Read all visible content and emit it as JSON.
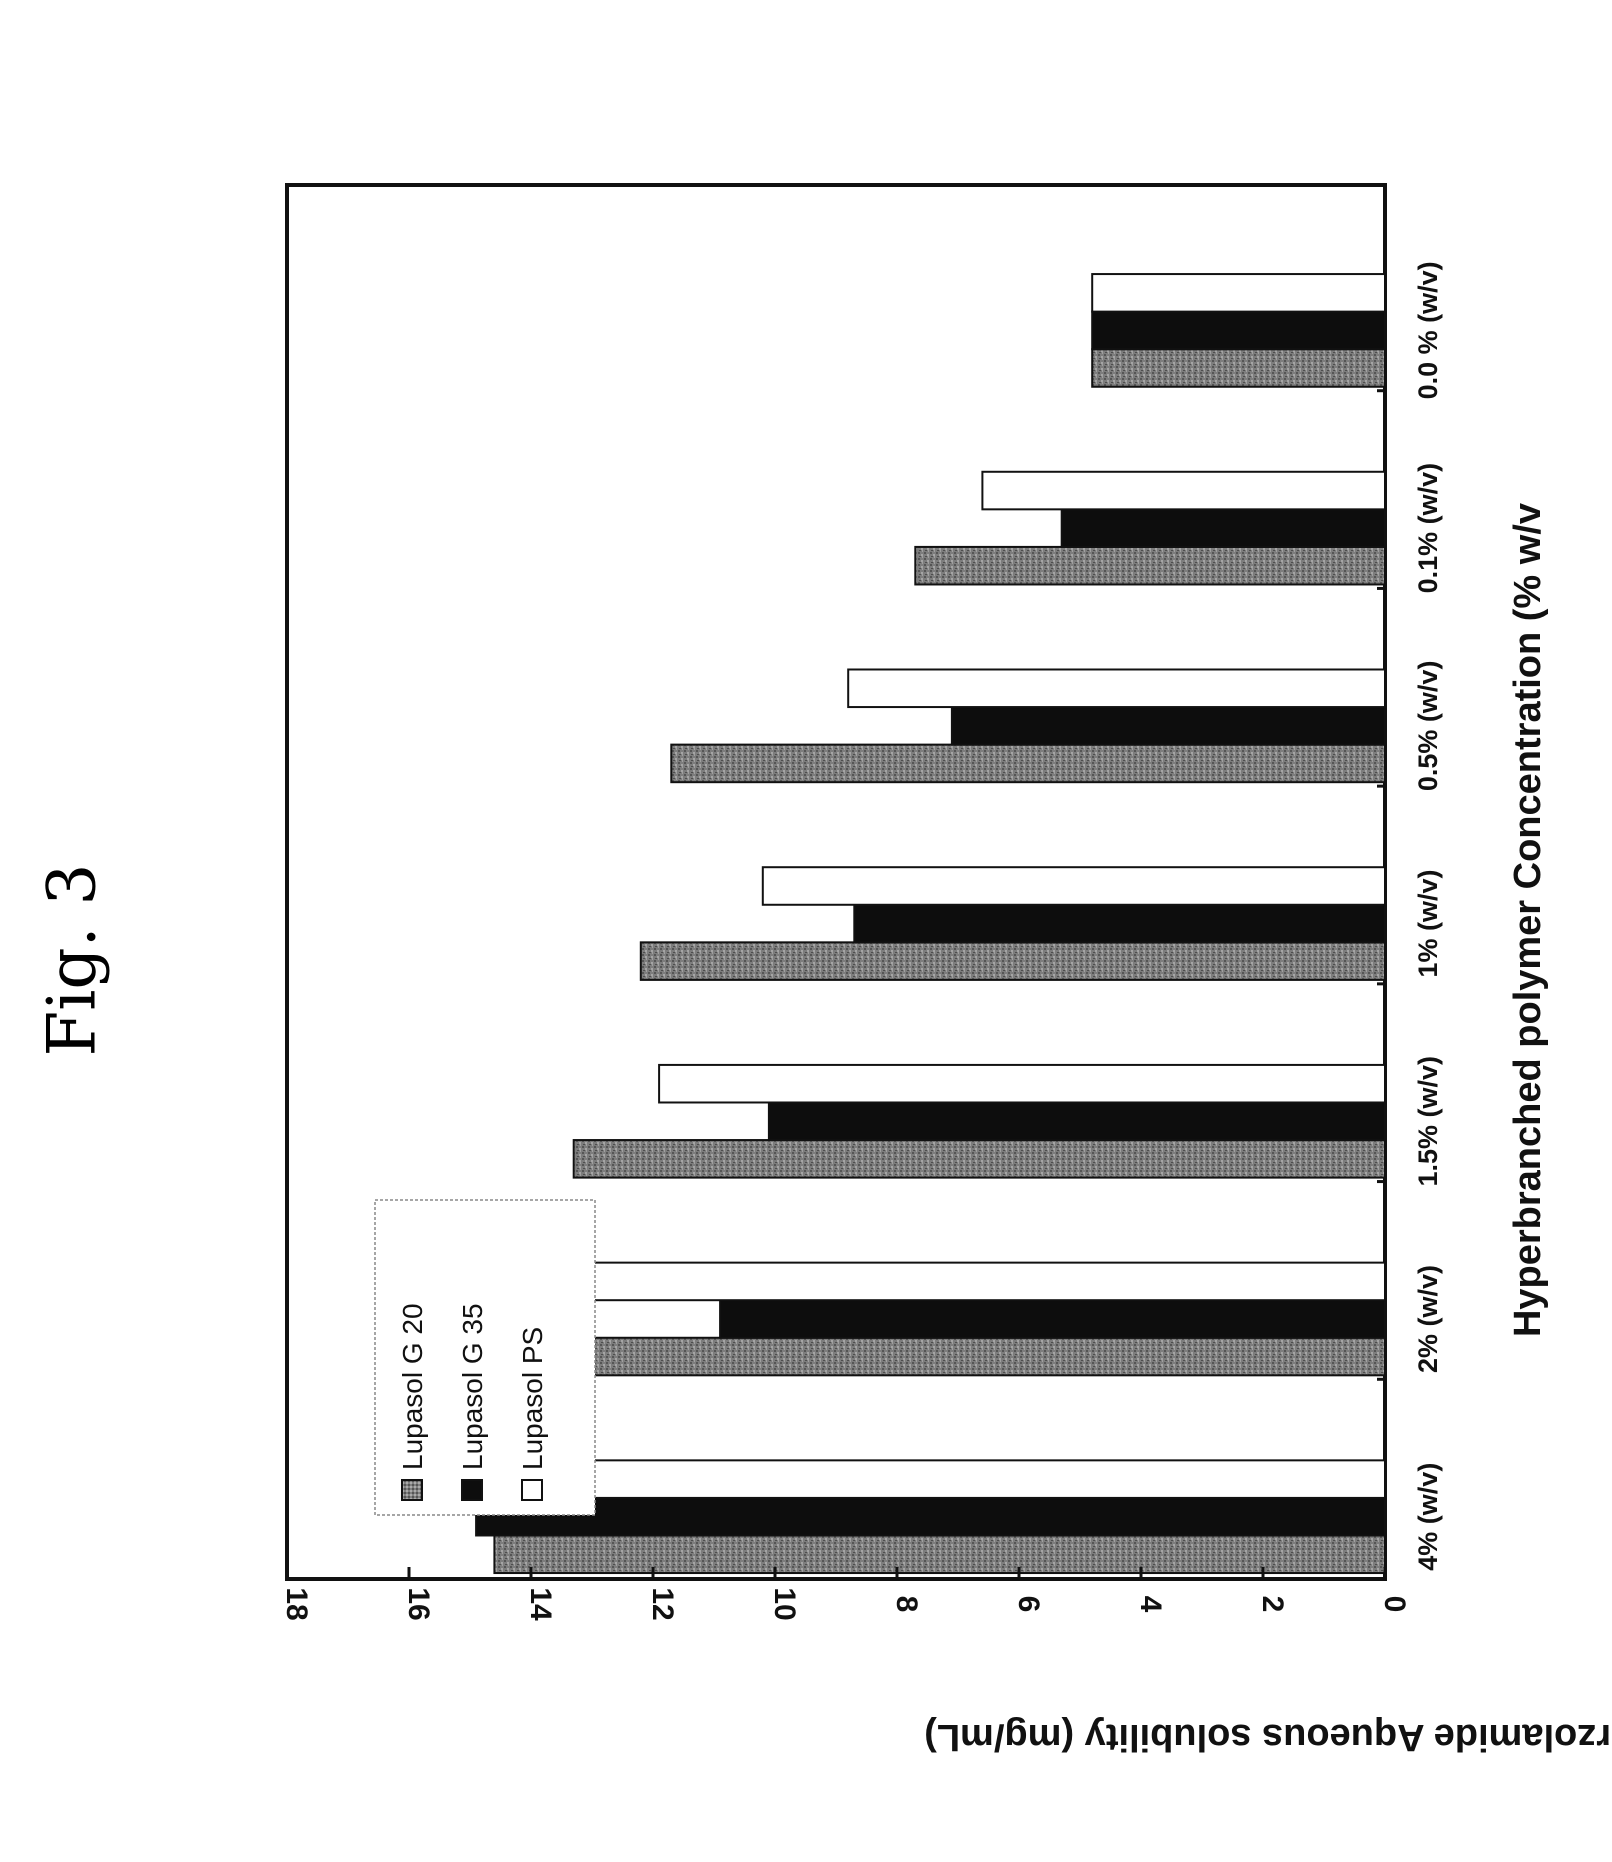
{
  "figure": {
    "title": "Fig. 3"
  },
  "colors": {
    "g20": "#7a7a7a",
    "g35": "#0d0d0d",
    "ps": "#ffffff",
    "outline": "#111111"
  },
  "chart_data": {
    "type": "bar",
    "orientation": "rotated-90",
    "categories": [
      "0.0 % (w/v)",
      "0.1% (w/v)",
      "0.5% (w/v)",
      "1% (w/v)",
      "1.5% (w/v)",
      "2% (w/v)",
      "4% (w/v)"
    ],
    "series": [
      {
        "name": "Lupasol G 20",
        "values": [
          4.8,
          7.7,
          11.7,
          12.2,
          13.3,
          14.6,
          14.6
        ],
        "color": "#7a7a7a",
        "texture": "speckled"
      },
      {
        "name": "Lupasol G 35",
        "values": [
          4.8,
          5.3,
          7.1,
          8.7,
          10.1,
          10.9,
          14.9
        ],
        "color": "#0d0d0d"
      },
      {
        "name": "Lupasol PS",
        "values": [
          4.8,
          6.6,
          8.8,
          10.2,
          11.9,
          13.2,
          16.0
        ],
        "color": "#ffffff"
      }
    ],
    "xlabel": "Hyperbranched polymer Concentration (% w/v",
    "ylabel": "Dorzolamide Aqueous solubility  (mg/mL)",
    "ylim": [
      0,
      18
    ],
    "yticks": [
      0,
      2,
      4,
      6,
      8,
      10,
      12,
      14,
      16,
      18
    ],
    "grid": false,
    "legend": "upper-left"
  }
}
